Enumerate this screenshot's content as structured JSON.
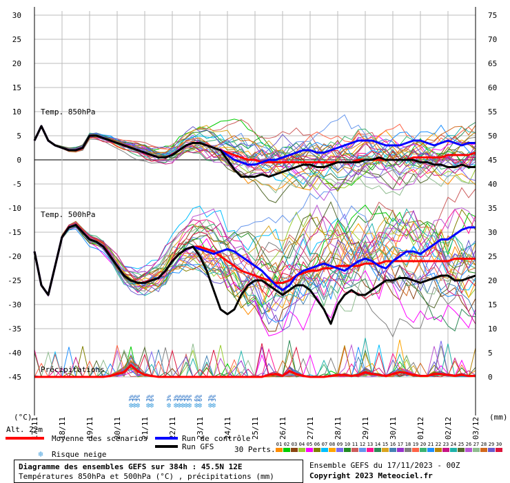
{
  "chart_data": {
    "type": "line",
    "left_axis_unit": "(°C)",
    "right_axis_unit": "(mm)",
    "left_ticks": [
      30,
      25,
      20,
      15,
      10,
      5,
      0,
      -5,
      -10,
      -15,
      -20,
      -25,
      -30,
      -35,
      -40,
      -45
    ],
    "right_ticks": [
      75,
      70,
      65,
      60,
      55,
      50,
      45,
      40,
      35,
      30,
      25,
      20,
      15,
      10,
      5,
      0
    ],
    "x_labels": [
      "17/11",
      "18/11",
      "19/11",
      "20/11",
      "21/11",
      "22/11",
      "23/11",
      "24/11",
      "25/11",
      "26/11",
      "27/11",
      "28/11",
      "29/11",
      "30/11",
      "01/12",
      "02/12",
      "03/12"
    ],
    "panel_labels": {
      "t850": "Temp. 850hPa",
      "t500": "Temp. 500hPa",
      "precip": "Précipitations"
    },
    "alt_label": "Alt. 22m",
    "x_hours": [
      0,
      6,
      12,
      18,
      24,
      30,
      36,
      42,
      48,
      54,
      60,
      66,
      72,
      78,
      84,
      90,
      96,
      102,
      108,
      114,
      120,
      126,
      132,
      138,
      144,
      150,
      156,
      162,
      168,
      174,
      180,
      186,
      192,
      198,
      204,
      210,
      216,
      222,
      228,
      234,
      240,
      246,
      252,
      258,
      264,
      270,
      276,
      282,
      288,
      294,
      300,
      306,
      312,
      318,
      324,
      330,
      336,
      342,
      348,
      354,
      360,
      366,
      372,
      378,
      384
    ],
    "series": [
      {
        "name": "Moyenne des scénarios",
        "color": "#ff0000",
        "width": 3,
        "t850": [
          4,
          7,
          4,
          3,
          2.5,
          2,
          2,
          2.5,
          5,
          5,
          4.5,
          4,
          3.5,
          3,
          2.5,
          2,
          1.5,
          1,
          0.5,
          0.5,
          1,
          2,
          3,
          3.5,
          3.5,
          3,
          2.5,
          2,
          1.5,
          1,
          0.5,
          0,
          0,
          -0.5,
          -0.5,
          -0.5,
          -0.5,
          -0.5,
          -0.5,
          -0.5,
          -0.5,
          -0.5,
          -0.5,
          -0.5,
          -0.5,
          -0.5,
          -0.5,
          0,
          0,
          0,
          0,
          0,
          0,
          0,
          0,
          0.5,
          0.5,
          0.5,
          0.5,
          0.5,
          1,
          1,
          1,
          1,
          1.5
        ],
        "t500": [
          -19,
          -26,
          -28,
          -22,
          -16,
          -14,
          -13.5,
          -15,
          -16.5,
          -17,
          -18,
          -20,
          -22,
          -24,
          -25,
          -25.5,
          -25.5,
          -25,
          -24.5,
          -23,
          -21,
          -19.5,
          -18.5,
          -18,
          -18,
          -18.5,
          -19,
          -20,
          -21,
          -22,
          -23,
          -23.5,
          -24,
          -24.5,
          -25,
          -25.5,
          -25.5,
          -25,
          -24,
          -23.5,
          -23,
          -23,
          -22.5,
          -22.5,
          -22,
          -22,
          -22,
          -22,
          -21.5,
          -21.5,
          -21.5,
          -21,
          -21,
          -21,
          -21,
          -21,
          -21,
          -21,
          -21,
          -21,
          -21,
          -20.5,
          -20.5,
          -20.5,
          -20.5
        ],
        "precip": [
          0,
          0,
          0,
          0,
          0,
          0,
          0,
          0,
          0,
          0,
          0,
          0.1,
          0.3,
          0.5,
          1.2,
          0.6,
          0.2,
          0.1,
          0,
          0,
          0,
          0,
          0,
          0,
          0,
          0,
          0,
          0,
          0,
          0,
          0,
          0,
          0,
          0,
          0.2,
          0.3,
          0.1,
          0.6,
          0.3,
          0.1,
          0,
          0,
          0,
          0.1,
          0.2,
          0.2,
          0.1,
          0.2,
          0.5,
          0.3,
          0.2,
          0.1,
          0.3,
          0.5,
          0.4,
          0.2,
          0.1,
          0.1,
          0.3,
          0.3,
          0.2,
          0.1,
          0.2,
          0.1,
          0.1
        ]
      },
      {
        "name": "Run de contrôle",
        "color": "#0000ff",
        "width": 3,
        "t850": [
          4,
          7,
          4,
          3,
          2.5,
          2,
          2,
          2.5,
          5,
          5,
          4.5,
          4,
          3.5,
          3,
          2.5,
          2,
          1.5,
          1,
          0.5,
          0.5,
          1,
          2,
          3,
          3.5,
          3.5,
          3,
          2.5,
          2,
          1,
          0,
          -0.5,
          -1,
          -1,
          -0.5,
          0,
          0,
          0.5,
          1,
          1.5,
          2,
          2,
          1.5,
          1.5,
          2,
          2.5,
          3,
          3.5,
          4,
          4,
          4,
          3.5,
          3,
          3,
          3,
          3.5,
          4,
          4,
          3.5,
          3,
          3.5,
          4,
          3.5,
          3,
          3.5,
          3.5
        ],
        "t500": [
          -19,
          -26,
          -28,
          -22,
          -16,
          -14,
          -13.5,
          -15,
          -16.5,
          -17,
          -18,
          -20,
          -22,
          -24,
          -25,
          -25.5,
          -25.5,
          -25,
          -24.5,
          -23,
          -21,
          -19.5,
          -18.5,
          -18,
          -18.5,
          -19,
          -19.5,
          -19,
          -18.5,
          -19,
          -20,
          -21,
          -22,
          -23,
          -24.5,
          -26,
          -27,
          -26,
          -24,
          -23,
          -22.5,
          -22,
          -21.5,
          -22,
          -22.5,
          -23,
          -22,
          -21,
          -20.5,
          -21,
          -22,
          -22.5,
          -21,
          -20,
          -19,
          -19,
          -19.5,
          -18.5,
          -17.5,
          -16.5,
          -16.5,
          -15.5,
          -14.5,
          -14,
          -14
        ]
      },
      {
        "name": "Run GFS",
        "color": "#000000",
        "width": 3,
        "t850": [
          4,
          7,
          4,
          3,
          2.5,
          2,
          2,
          2.5,
          5,
          5,
          4.5,
          4,
          3.5,
          3,
          2.5,
          2,
          1.5,
          1,
          0.5,
          0.5,
          1,
          2,
          3,
          3.5,
          3.5,
          3,
          2.5,
          2,
          0,
          -2,
          -3.5,
          -3.5,
          -3.5,
          -3,
          -3.5,
          -3,
          -2.5,
          -2,
          -1.5,
          -1,
          -1,
          -1.5,
          -1.5,
          -1,
          -0.5,
          -0.5,
          -0.5,
          -0.5,
          0,
          0,
          0.5,
          0,
          0,
          0,
          0,
          0,
          -0.5,
          -0.5,
          -1,
          -1,
          -1.5,
          -1.5,
          -1,
          -1.5,
          -1.5
        ],
        "t500": [
          -19,
          -26,
          -28,
          -22,
          -16,
          -14,
          -13.5,
          -15,
          -16.5,
          -17,
          -18,
          -20,
          -22,
          -24,
          -25,
          -25.5,
          -25.5,
          -25,
          -24.5,
          -23,
          -21,
          -19.5,
          -18.5,
          -18,
          -20,
          -23,
          -27,
          -31,
          -32,
          -31,
          -28,
          -26,
          -25,
          -25,
          -26,
          -27,
          -28,
          -27,
          -26,
          -26,
          -27,
          -29,
          -31,
          -34,
          -30,
          -28,
          -27,
          -28,
          -28,
          -27,
          -26,
          -25,
          -25,
          -24.5,
          -24.5,
          -25,
          -25.5,
          -25,
          -24.5,
          -24,
          -24,
          -25,
          -25,
          -24.5,
          -24
        ]
      }
    ],
    "perturbations": {
      "count_label": "30 Perts.",
      "numbers": [
        "01",
        "02",
        "03",
        "04",
        "05",
        "06",
        "07",
        "08",
        "09",
        "10",
        "11",
        "12",
        "13",
        "14",
        "15",
        "16",
        "17",
        "18",
        "19",
        "20",
        "21",
        "22",
        "23",
        "24",
        "25",
        "26",
        "27",
        "28",
        "29",
        "30"
      ],
      "colors": [
        "#ff8c00",
        "#00cc00",
        "#8b4513",
        "#9acd32",
        "#ff00ff",
        "#808000",
        "#00bfff",
        "#ffa500",
        "#7b68ee",
        "#228b22",
        "#cd5c5c",
        "#6495ed",
        "#ff1493",
        "#2e8b57",
        "#daa520",
        "#4682b4",
        "#9932cc",
        "#808080",
        "#ff6347",
        "#3cb371",
        "#1e90ff",
        "#b8860b",
        "#c71585",
        "#20b2aa",
        "#556b2f",
        "#ba55d3",
        "#8fbc8f",
        "#d2691e",
        "#6a5acd",
        "#dc143c"
      ]
    },
    "snow_risk": [
      {
        "hour": 84,
        "text": "3%"
      },
      {
        "hour": 87,
        "text": "3%"
      },
      {
        "hour": 90,
        "text": "3%"
      },
      {
        "hour": 99,
        "text": "3%"
      },
      {
        "hour": 102,
        "text": "6%"
      },
      {
        "hour": 117,
        "text": "3%"
      },
      {
        "hour": 123,
        "text": "3%"
      },
      {
        "hour": 126,
        "text": "3%"
      },
      {
        "hour": 129,
        "text": "3%"
      },
      {
        "hour": 132,
        "text": "3%"
      },
      {
        "hour": 135,
        "text": "3%"
      },
      {
        "hour": 141,
        "text": "6%"
      },
      {
        "hour": 144,
        "text": "6%"
      },
      {
        "hour": 153,
        "text": "3%"
      },
      {
        "hour": 156,
        "text": "3%"
      }
    ]
  },
  "legend": {
    "mean_label": "Moyenne des scénarios",
    "control_label": "Run de contrôle",
    "gfs_label": "Run GFS",
    "snow_label": "Risque neige",
    "mean_color": "#ff0000",
    "control_color": "#0000ff",
    "gfs_color": "#000000",
    "snow_icon": "snowflake-icon"
  },
  "footer": {
    "title": "Diagramme des ensembles GEFS sur 384h : 45.5N 12E",
    "subtitle": "Températures 850hPa et 500hPa (°C) , précipitations (mm)",
    "run": "Ensemble GEFS du 17/11/2023 - 00Z",
    "copyright": "Copyright 2023 Meteociel.fr"
  }
}
